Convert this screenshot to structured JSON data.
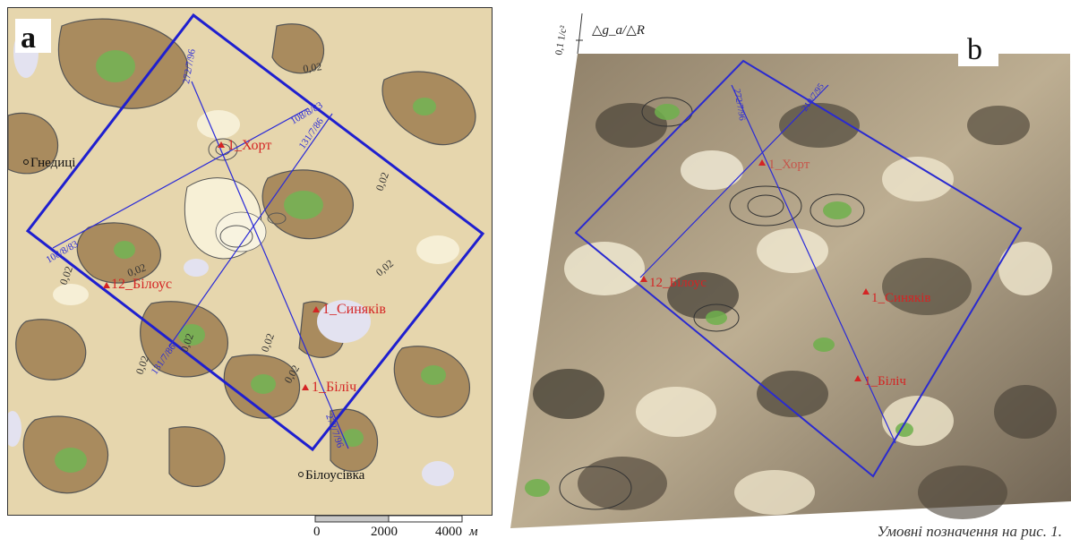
{
  "panel_a": {
    "letter": "a",
    "towns": [
      "Гнедиці",
      "Білоусівка"
    ],
    "points": [
      "1_Хорт",
      "12_Білоус",
      "1_Синяків",
      "1_Біліч"
    ],
    "profiles": [
      "272/7/96",
      "108/8/83",
      "131/7/86",
      "108/8/83",
      "131/7/86",
      "272/7/96"
    ],
    "contour_labels": [
      "0,02",
      "0,02",
      "0,02",
      "0,02",
      "0,02",
      "0,02",
      "0,02",
      "0,02",
      "0,02"
    ]
  },
  "panel_b": {
    "letter": "b",
    "axis_value": "0,1 1/c²",
    "axis_formula": "△g_a/△R",
    "profiles": [
      "272/7/96",
      "210/7/95"
    ],
    "points": [
      "1_Хорт",
      "12_Білоус",
      "1_Синяків",
      "1_Біліч"
    ]
  },
  "scale": {
    "ticks": [
      "0",
      "2000",
      "4000"
    ],
    "unit": "м"
  },
  "caption": "Умовні позначення на рис. 1.",
  "colors": {
    "boundary": "#1f1fcf",
    "profile": "#2a2ad8",
    "label_red": "#d42424",
    "contour": "#4a4a4a",
    "green": "#6aa84f",
    "brown": "#a88a5c",
    "tan": "#d8c49a",
    "cream": "#f5edcf",
    "lavender": "#dcdcee"
  }
}
